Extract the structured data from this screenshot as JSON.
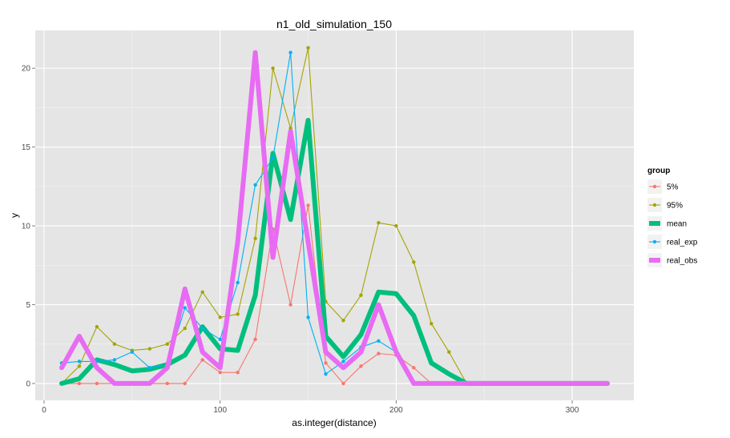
{
  "chart_data": {
    "type": "line",
    "title": "n1_old_simulation_150",
    "xlabel": "as.integer(distance)",
    "ylabel": "y",
    "xlim": [
      -5,
      335
    ],
    "ylim": [
      -1.07,
      22.4
    ],
    "x_ticks": [
      0,
      100,
      200,
      300
    ],
    "y_ticks": [
      0,
      5,
      10,
      15,
      20
    ],
    "x_tick_labels": [
      "0",
      "100",
      "200",
      "300"
    ],
    "y_tick_labels": [
      "0",
      "5",
      "10",
      "15",
      "20"
    ],
    "grid": true,
    "legend": {
      "title": "group",
      "position": "right"
    },
    "x": [
      10,
      20,
      30,
      40,
      50,
      60,
      70,
      80,
      90,
      100,
      110,
      120,
      130,
      140,
      150,
      160,
      170,
      180,
      190,
      200,
      210,
      220,
      230,
      240,
      250,
      260,
      270,
      280,
      290,
      300,
      310,
      320
    ],
    "series": [
      {
        "name": "5%",
        "color": "#F8766D",
        "style": "thin-points",
        "values": [
          0,
          0,
          0,
          0,
          0,
          0,
          0,
          0,
          1.5,
          0.7,
          0.7,
          2.8,
          9.8,
          5.0,
          11.3,
          1.3,
          0,
          1.1,
          1.9,
          1.8,
          1.0,
          0,
          0,
          0,
          0,
          0,
          0,
          0,
          0,
          0,
          0,
          0
        ]
      },
      {
        "name": "95%",
        "color": "#A3A500",
        "style": "thin-points",
        "values": [
          0,
          1.1,
          3.6,
          2.5,
          2.1,
          2.2,
          2.5,
          3.5,
          5.8,
          4.2,
          4.4,
          9.2,
          20.0,
          16.2,
          21.3,
          5.2,
          4.0,
          5.6,
          10.2,
          10.0,
          7.7,
          3.8,
          2.0,
          0,
          0,
          0,
          0,
          0,
          0,
          0,
          0,
          0
        ]
      },
      {
        "name": "mean",
        "color": "#00BF7D",
        "style": "thick",
        "values": [
          0,
          0.3,
          1.5,
          1.2,
          0.8,
          0.9,
          1.2,
          1.8,
          3.6,
          2.2,
          2.1,
          5.6,
          14.6,
          10.4,
          16.7,
          3.0,
          1.7,
          3.1,
          5.8,
          5.7,
          4.3,
          1.3,
          0.6,
          0,
          0,
          0,
          0,
          0,
          0,
          0,
          0,
          0
        ]
      },
      {
        "name": "real_exp",
        "color": "#00B0F6",
        "style": "thin-points",
        "values": [
          1.3,
          1.4,
          1.4,
          1.5,
          2.0,
          1.0,
          1.2,
          4.8,
          3.5,
          2.8,
          6.4,
          12.6,
          14.3,
          21.0,
          4.2,
          0.6,
          1.4,
          2.3,
          2.7,
          2.0,
          0.1,
          0,
          0,
          0,
          0,
          0,
          0,
          0,
          0,
          0,
          0,
          0
        ]
      },
      {
        "name": "real_obs",
        "color": "#E76BF3",
        "style": "thick",
        "values": [
          1,
          3,
          1,
          0,
          0,
          0,
          1,
          6,
          2,
          1,
          9,
          21,
          8,
          16,
          9,
          2,
          1,
          2,
          5,
          2,
          0,
          0,
          0,
          0,
          0,
          0,
          0,
          0,
          0,
          0,
          0,
          0
        ]
      }
    ]
  }
}
